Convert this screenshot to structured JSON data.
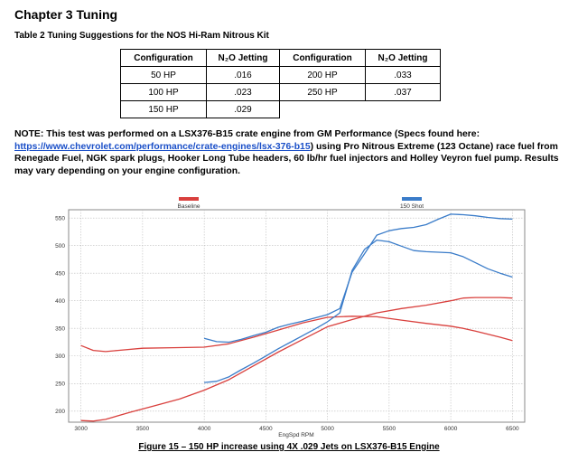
{
  "heading": "Chapter 3 Tuning",
  "table": {
    "caption": "Table 2 Tuning Suggestions for the NOS Hi-Ram Nitrous Kit",
    "headers": [
      "Configuration",
      "N₂O Jetting",
      "Configuration",
      "N₂O Jetting"
    ],
    "rows": [
      [
        "50 HP",
        ".016",
        "200 HP",
        ".033"
      ],
      [
        "100 HP",
        ".023",
        "250 HP",
        ".037"
      ],
      [
        "150 HP",
        ".029",
        "",
        ""
      ]
    ]
  },
  "note": {
    "before": "NOTE: This test was performed on a LSX376-B15 crate engine from GM Performance (Specs found here: ",
    "link": "https://www.chevrolet.com/performance/crate-engines/lsx-376-b15",
    "after": ") using Pro Nitrous Extreme (123 Octane) race fuel from Renegade Fuel, NGK spark plugs, Hooker Long Tube headers, 60 lb/hr fuel injectors and Holley Veyron fuel pump.  Results may vary depending on your engine configuration."
  },
  "figure_caption": "Figure 15 – 150 HP increase using 4X .029 Jets on LSX376-B15 Engine",
  "colors": {
    "baseline": "#d9403d",
    "shot": "#3a7cc9"
  },
  "chart_data": {
    "type": "line",
    "xlabel": "EngSpd RPM",
    "xlim": [
      2900,
      6600
    ],
    "ylim": [
      180,
      565
    ],
    "x_ticks": [
      3000,
      3500,
      4000,
      4500,
      5000,
      5500,
      6000,
      6500
    ],
    "y_ticks": [
      200,
      250,
      300,
      350,
      400,
      450,
      500,
      550
    ],
    "legend": [
      "Baseline",
      "150 Shot"
    ],
    "series": [
      {
        "name": "Baseline",
        "color": "#d9403d",
        "curves": [
          {
            "x": [
              3000,
              3100,
              3200,
              3300,
              3500,
              3750,
              4000,
              4200,
              4400,
              4600,
              4800,
              5000,
              5200,
              5400,
              5600,
              5800,
              6000,
              6100,
              6200,
              6400,
              6500
            ],
            "y": [
              319,
              310,
              308,
              310,
              314,
              315,
              316,
              322,
              334,
              347,
              360,
              370,
              372,
              371,
              365,
              359,
              354,
              350,
              345,
              334,
              328
            ]
          },
          {
            "x": [
              3000,
              3100,
              3200,
              3400,
              3600,
              3800,
              4000,
              4200,
              4400,
              4600,
              4800,
              5000,
              5200,
              5400,
              5600,
              5800,
              6000,
              6100,
              6200,
              6400,
              6500
            ],
            "y": [
              183,
              182,
              185,
              198,
              210,
              222,
              238,
              257,
              282,
              307,
              330,
              353,
              366,
              378,
              386,
              392,
              400,
              405,
              406,
              406,
              405
            ]
          }
        ]
      },
      {
        "name": "150 Shot",
        "color": "#3a7cc9",
        "curves": [
          {
            "x": [
              4000,
              4100,
              4200,
              4300,
              4400,
              4500,
              4600,
              4700,
              4800,
              4900,
              5000,
              5100,
              5200,
              5300,
              5400,
              5500,
              5600,
              5700,
              5800,
              5900,
              6000,
              6100,
              6200,
              6300,
              6400,
              6500
            ],
            "y": [
              252,
              254,
              262,
              275,
              287,
              300,
              313,
              325,
              337,
              349,
              362,
              378,
              455,
              493,
              510,
              507,
              499,
              491,
              489,
              488,
              487,
              480,
              469,
              458,
              450,
              443
            ]
          },
          {
            "x": [
              4000,
              4100,
              4200,
              4300,
              4400,
              4500,
              4600,
              4700,
              4800,
              4900,
              5000,
              5100,
              5200,
              5300,
              5400,
              5500,
              5600,
              5700,
              5800,
              5900,
              6000,
              6100,
              6200,
              6300,
              6400,
              6500
            ],
            "y": [
              332,
              326,
              325,
              330,
              337,
              343,
              352,
              358,
              363,
              369,
              375,
              386,
              452,
              485,
              519,
              527,
              531,
              533,
              538,
              548,
              557,
              556,
              554,
              551,
              549,
              548
            ]
          }
        ]
      }
    ]
  }
}
